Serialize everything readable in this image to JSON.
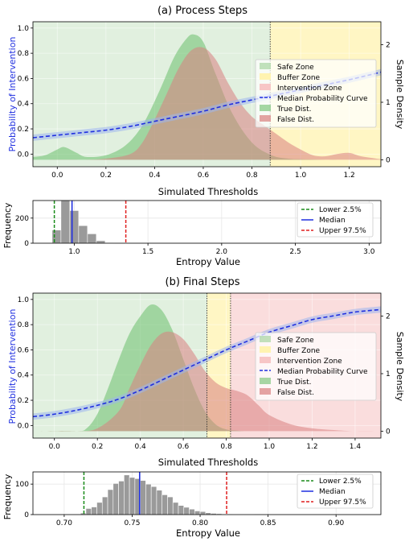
{
  "colors": {
    "safe": "#a8d5a2",
    "buffer": "#fff3b0",
    "intervention": "#f7c6c6",
    "median_curve": "#1f2fe0",
    "band": "#9db5ef",
    "true_dist": "#6cbf6c",
    "false_dist": "#d97f7f",
    "hist_bar": "#9a9a9a",
    "lower_line": "#1a8c1a",
    "median_line": "#1f2fe0",
    "upper_line": "#e01f1f"
  },
  "chart_data": [
    {
      "panel": "a",
      "type": "area",
      "title": "(a) Process Steps",
      "xlabel": "Simulated Thresholds",
      "ylabel": "Probability of Intervention",
      "ylabel_right": "Sample Density",
      "xlim": [
        -0.1,
        1.33
      ],
      "ylim": [
        -0.1,
        1.05
      ],
      "ylim_right": [
        -0.12,
        2.4
      ],
      "xticks": [
        "0.0",
        "0.2",
        "0.4",
        "0.6",
        "0.8",
        "1.0",
        "1.2"
      ],
      "yticks": [
        "0.0",
        "0.2",
        "0.4",
        "0.6",
        "0.8",
        "1.0"
      ],
      "yticks_right": [
        "0",
        "1",
        "2"
      ],
      "zones": {
        "safe_end": 0.875,
        "buffer_end": 1.33
      },
      "threshold_line": 0.875,
      "legend": [
        "Safe Zone",
        "Buffer Zone",
        "Intervention Zone",
        "Median Probability Curve",
        "True Dist.",
        "False Dist."
      ],
      "median_curve": {
        "x": [
          -0.1,
          0.0,
          0.1,
          0.2,
          0.3,
          0.4,
          0.5,
          0.6,
          0.7,
          0.8,
          0.9,
          1.0,
          1.1,
          1.2,
          1.33
        ],
        "y": [
          0.13,
          0.15,
          0.17,
          0.19,
          0.22,
          0.26,
          0.3,
          0.34,
          0.39,
          0.43,
          0.47,
          0.51,
          0.55,
          0.59,
          0.65
        ]
      },
      "true_dist": {
        "x": [
          -0.1,
          -0.05,
          0.0,
          0.03,
          0.08,
          0.12,
          0.2,
          0.28,
          0.35,
          0.42,
          0.48,
          0.53,
          0.56,
          0.6,
          0.65,
          0.72,
          0.8,
          0.88,
          0.95,
          1.0,
          1.1,
          1.2,
          1.33
        ],
        "y": [
          0.05,
          0.08,
          0.18,
          0.22,
          0.12,
          0.05,
          0.08,
          0.25,
          0.6,
          1.2,
          1.78,
          2.1,
          2.18,
          2.05,
          1.5,
          0.8,
          0.3,
          0.08,
          0.02,
          0.01,
          0.0,
          0.0,
          0.0
        ]
      },
      "false_dist": {
        "x": [
          -0.1,
          0.1,
          0.2,
          0.3,
          0.35,
          0.4,
          0.45,
          0.5,
          0.55,
          0.6,
          0.65,
          0.7,
          0.75,
          0.8,
          0.85,
          0.9,
          0.95,
          1.0,
          1.05,
          1.1,
          1.15,
          1.2,
          1.25,
          1.33
        ],
        "y": [
          0.0,
          0.0,
          0.02,
          0.1,
          0.3,
          0.7,
          1.15,
          1.6,
          1.9,
          1.95,
          1.75,
          1.35,
          1.0,
          0.75,
          0.6,
          0.45,
          0.3,
          0.18,
          0.08,
          0.06,
          0.1,
          0.12,
          0.06,
          0.01
        ]
      },
      "hist": {
        "xlabel": "Entropy Value",
        "ylabel": "Frequency",
        "xlim": [
          0.72,
          3.08
        ],
        "ylim": [
          0,
          340
        ],
        "xticks": [
          "1.0",
          "1.5",
          "2.0",
          "2.5",
          "3.0"
        ],
        "yticks": [
          "0",
          "200"
        ],
        "bin_edges": [
          0.85,
          0.91,
          0.97,
          1.03,
          1.09,
          1.15,
          1.21,
          1.27
        ],
        "counts": [
          105,
          340,
          260,
          140,
          75,
          20,
          5
        ],
        "lower": 0.865,
        "median": 0.985,
        "upper": 1.35,
        "legend": [
          "Lower 2.5%",
          "Median",
          "Upper 97.5%"
        ]
      }
    },
    {
      "panel": "b",
      "type": "area",
      "title": "(b) Final Steps",
      "xlabel": "Simulated Thresholds",
      "ylabel": "Probability of Intervention",
      "ylabel_right": "Sample Density",
      "xlim": [
        -0.1,
        1.52
      ],
      "ylim": [
        -0.1,
        1.05
      ],
      "ylim_right": [
        -0.12,
        2.4
      ],
      "xticks": [
        "0.0",
        "0.2",
        "0.4",
        "0.6",
        "0.8",
        "1.0",
        "1.2",
        "1.4"
      ],
      "yticks": [
        "0.0",
        "0.2",
        "0.4",
        "0.6",
        "0.8",
        "1.0"
      ],
      "yticks_right": [
        "0",
        "1",
        "2"
      ],
      "zones": {
        "safe_end": 0.71,
        "buffer_end": 0.82
      },
      "threshold_lines": [
        0.71,
        0.82
      ],
      "legend": [
        "Safe Zone",
        "Buffer Zone",
        "Intervention Zone",
        "Median Probability Curve",
        "True Dist.",
        "False Dist."
      ],
      "median_curve": {
        "x": [
          -0.1,
          0.0,
          0.1,
          0.2,
          0.3,
          0.4,
          0.5,
          0.6,
          0.7,
          0.8,
          0.9,
          1.0,
          1.1,
          1.2,
          1.3,
          1.4,
          1.52
        ],
        "y": [
          0.07,
          0.09,
          0.12,
          0.16,
          0.21,
          0.28,
          0.36,
          0.44,
          0.52,
          0.6,
          0.67,
          0.74,
          0.79,
          0.84,
          0.87,
          0.9,
          0.92
        ]
      },
      "true_dist": {
        "x": [
          -0.1,
          0.1,
          0.15,
          0.2,
          0.25,
          0.3,
          0.35,
          0.4,
          0.45,
          0.5,
          0.55,
          0.6,
          0.65,
          0.7,
          0.75,
          0.8,
          0.85,
          0.9,
          1.0,
          1.52
        ],
        "y": [
          0.0,
          0.0,
          0.05,
          0.3,
          0.75,
          1.25,
          1.7,
          2.0,
          2.2,
          2.1,
          1.75,
          1.25,
          0.75,
          0.35,
          0.12,
          0.03,
          0.01,
          0.0,
          0.0,
          0.0
        ]
      },
      "false_dist": {
        "x": [
          -0.1,
          0.1,
          0.2,
          0.3,
          0.35,
          0.4,
          0.45,
          0.5,
          0.55,
          0.6,
          0.65,
          0.7,
          0.75,
          0.8,
          0.85,
          0.9,
          0.95,
          1.0,
          1.1,
          1.2,
          1.3,
          1.4,
          1.52
        ],
        "y": [
          0.0,
          0.0,
          0.05,
          0.35,
          0.75,
          1.15,
          1.5,
          1.7,
          1.72,
          1.6,
          1.35,
          1.05,
          0.85,
          0.75,
          0.7,
          0.62,
          0.45,
          0.28,
          0.12,
          0.05,
          0.02,
          0.0,
          0.0
        ]
      },
      "hist": {
        "xlabel": "Entropy Value",
        "ylabel": "Frequency",
        "xlim": [
          0.677,
          0.933
        ],
        "ylim": [
          0,
          140
        ],
        "xticks": [
          "0.70",
          "0.75",
          "0.80",
          "0.85",
          "0.90"
        ],
        "yticks": [
          "0",
          "100"
        ],
        "bin_edges": [
          0.712,
          0.716,
          0.72,
          0.724,
          0.728,
          0.732,
          0.736,
          0.74,
          0.744,
          0.748,
          0.752,
          0.756,
          0.76,
          0.764,
          0.768,
          0.772,
          0.776,
          0.78,
          0.784,
          0.788,
          0.792,
          0.796,
          0.8,
          0.804,
          0.808,
          0.812,
          0.816,
          0.82,
          0.824,
          0.828,
          0.832,
          0.836,
          0.84
        ],
        "counts": [
          5,
          20,
          25,
          40,
          58,
          82,
          102,
          110,
          130,
          122,
          118,
          112,
          100,
          92,
          80,
          65,
          58,
          40,
          30,
          24,
          18,
          12,
          10,
          6,
          4,
          3,
          2,
          2,
          1,
          1,
          1,
          1
        ],
        "lower": 0.7145,
        "median": 0.7555,
        "upper": 0.8195,
        "legend": [
          "Lower 2.5%",
          "Median",
          "Upper 97.5%"
        ]
      }
    }
  ]
}
